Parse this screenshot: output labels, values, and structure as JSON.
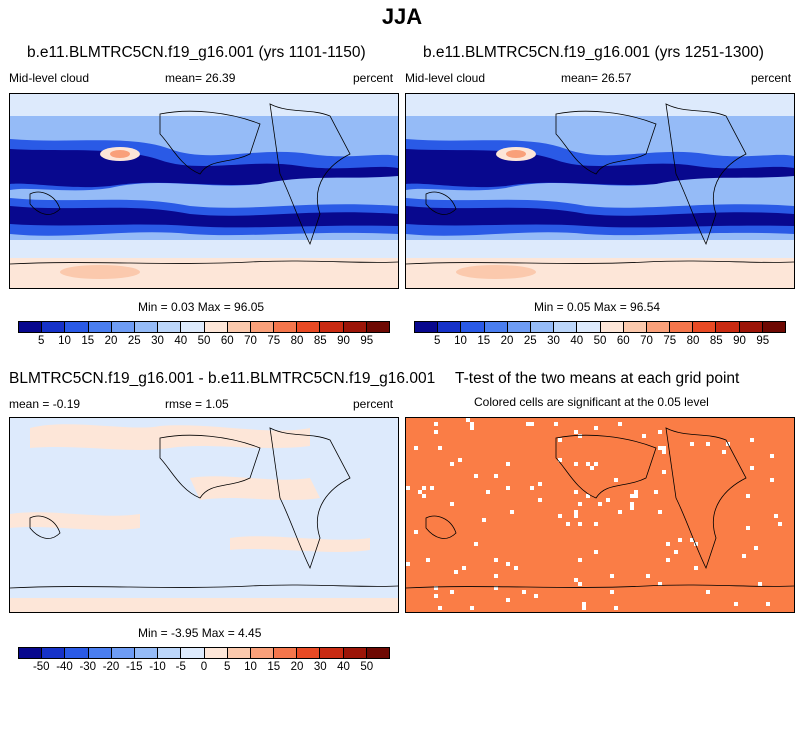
{
  "main_title": "JJA",
  "panels": {
    "p1": {
      "title": "b.e11.BLMTRC5CN.f19_g16.001 (yrs 1101-1150)",
      "left_label": "Mid-level cloud",
      "center_label": "mean=  26.39",
      "right_label": "percent",
      "minmax": "Min =  0.03 Max =  96.05"
    },
    "p2": {
      "title": "b.e11.BLMTRC5CN.f19_g16.001 (yrs 1251-1300)",
      "left_label": "Mid-level cloud",
      "center_label": "mean=  26.57",
      "right_label": "percent",
      "minmax": "Min =  0.05 Max =  96.54"
    },
    "p3": {
      "title": "BLMTRC5CN.f19_g16.001 - b.e11.BLMTRC5CN.f19_g16.001",
      "left_label": "mean =  -0.19",
      "center_label": "rmse =  1.05",
      "right_label": "percent",
      "minmax": "Min =  -3.95 Max =  4.45"
    },
    "p4": {
      "title": "T-test of the two means at each grid point",
      "subtitle": "Colored cells are significant at the 0.05 level"
    }
  },
  "colorbars": {
    "cloud": {
      "colors": [
        "#08088e",
        "#1632c8",
        "#2a5ae6",
        "#4a7ef0",
        "#6e9cf4",
        "#95bbf7",
        "#bcd6fa",
        "#ddeafc",
        "#fde6d8",
        "#fbc9ad",
        "#f9a07a",
        "#f4764c",
        "#e84a24",
        "#c92b12",
        "#9c1508",
        "#6e0903"
      ],
      "labels": [
        "5",
        "10",
        "15",
        "20",
        "25",
        "30",
        "40",
        "50",
        "60",
        "70",
        "75",
        "80",
        "85",
        "90",
        "95"
      ]
    },
    "diff": {
      "colors": [
        "#08088e",
        "#1632c8",
        "#2a5ae6",
        "#4a7ef0",
        "#6e9cf4",
        "#95bbf7",
        "#bcd6fa",
        "#ddeafc",
        "#fde6d8",
        "#fbc9ad",
        "#f9a07a",
        "#f4764c",
        "#e84a24",
        "#c92b12",
        "#9c1508",
        "#6e0903"
      ],
      "labels": [
        "-50",
        "-40",
        "-30",
        "-20",
        "-15",
        "-10",
        "-5",
        "0",
        "5",
        "10",
        "15",
        "20",
        "30",
        "40",
        "50"
      ]
    }
  },
  "colors": {
    "ocean_low": "#08088e",
    "cloud_mid": "#2a5ae6",
    "cloud_light": "#95bbf7",
    "cloud_pale": "#ddeafc",
    "cloud_warm": "#fde6d8",
    "cloud_orange": "#f9a07a",
    "diff_neg": "#ddeafc",
    "diff_pos": "#fde6d8",
    "significant": "#fa7d46"
  }
}
